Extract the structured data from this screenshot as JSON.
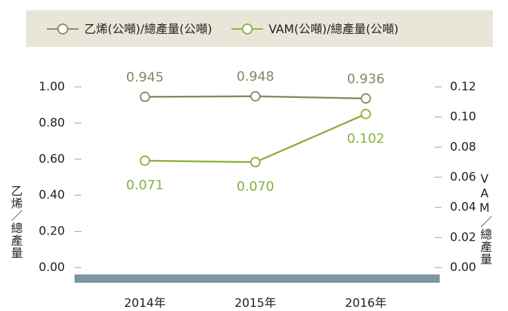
{
  "chart_data": {
    "type": "line",
    "categories": [
      "2014年",
      "2015年",
      "2016年"
    ],
    "series": [
      {
        "name": "乙烯(公噸)/總產量(公噸)",
        "color": "#8a8563",
        "values": [
          0.945,
          0.948,
          0.936
        ]
      },
      {
        "name": "VAM(公噸)/總產量(公噸)",
        "color": "#8ab03e",
        "axis": "y2",
        "values": [
          0.071,
          0.07,
          0.102
        ],
        "value_labels": [
          "0.071",
          "0.070",
          "0.102"
        ]
      }
    ],
    "ylabel": "乙烯／總產量",
    "y2label": "VAM／總產量",
    "ylim": [
      0,
      1
    ],
    "yticks": [
      {
        "value": 0,
        "label": "0.00"
      },
      {
        "value": 0.2,
        "label": "0.20"
      },
      {
        "value": 0.4,
        "label": "0.40"
      },
      {
        "value": 0.6,
        "label": "0.60"
      },
      {
        "value": 0.8,
        "label": "0.80"
      },
      {
        "value": 1,
        "label": "1.00"
      }
    ],
    "y2lim": [
      0,
      0.12
    ],
    "y2ticks": [
      {
        "value": 0,
        "label": "0.00"
      },
      0.02,
      0.04,
      0.06,
      0.08,
      {
        "value": 0.1,
        "label": "0.10"
      },
      0.12
    ],
    "legend": "top"
  }
}
